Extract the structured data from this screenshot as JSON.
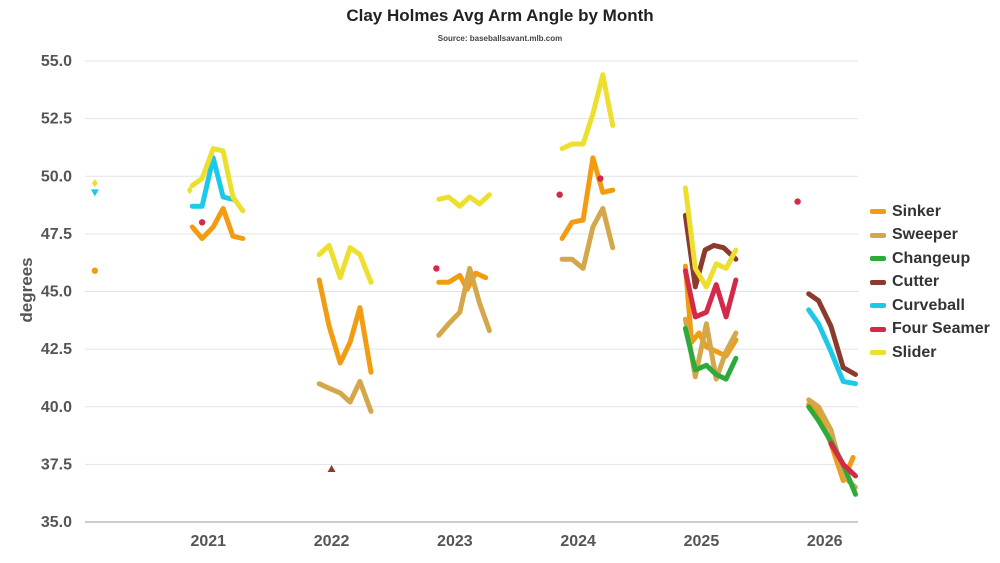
{
  "chart_data": {
    "type": "line",
    "title": "Clay Holmes Avg Arm Angle by Month",
    "subtitle": "Source: baseballsavant.mlb.com",
    "xlabel": "",
    "ylabel": "degrees",
    "xlim": [
      2020.0,
      2026.27
    ],
    "ylim": [
      35.0,
      55.0
    ],
    "x_ticks": [
      2021,
      2022,
      2023,
      2024,
      2025,
      2026
    ],
    "y_ticks": [
      "35.0",
      "37.5",
      "40.0",
      "42.5",
      "45.0",
      "47.5",
      "50.0",
      "52.5",
      "55.0"
    ],
    "grid": "horizontal",
    "legend_position": "right",
    "series": [
      {
        "name": "Sinker",
        "color": "#f39c12",
        "points": [
          [
            2020.87,
            47.8
          ],
          [
            2020.95,
            47.3
          ],
          [
            2021.04,
            47.8
          ],
          [
            2021.12,
            48.6
          ],
          [
            2021.2,
            47.4
          ],
          [
            2021.28,
            47.3
          ]
        ],
        "points2": [
          [
            2021.9,
            45.5
          ],
          [
            2021.98,
            43.5
          ],
          [
            2022.07,
            41.9
          ],
          [
            2022.15,
            42.8
          ],
          [
            2022.23,
            44.3
          ],
          [
            2022.32,
            41.5
          ]
        ],
        "points3": [
          [
            2022.87,
            45.4
          ],
          [
            2022.95,
            45.4
          ],
          [
            2023.04,
            45.7
          ],
          [
            2023.1,
            45.1
          ],
          [
            2023.17,
            45.8
          ],
          [
            2023.25,
            45.6
          ]
        ],
        "points4": [
          [
            2023.87,
            47.3
          ],
          [
            2023.95,
            48.0
          ],
          [
            2024.04,
            48.1
          ],
          [
            2024.12,
            50.8
          ],
          [
            2024.2,
            49.3
          ],
          [
            2024.28,
            49.4
          ]
        ],
        "points5": [
          [
            2024.87,
            46.1
          ],
          [
            2024.92,
            42.8
          ],
          [
            2024.98,
            43.2
          ],
          [
            2025.04,
            42.6
          ],
          [
            2025.12,
            42.4
          ],
          [
            2025.2,
            42.2
          ],
          [
            2025.28,
            42.9
          ]
        ],
        "points6": [
          [
            2025.87,
            40.1
          ],
          [
            2025.95,
            39.7
          ],
          [
            2026.05,
            38.4
          ],
          [
            2026.15,
            36.8
          ],
          [
            2026.23,
            37.8
          ]
        ]
      },
      {
        "name": "Sweeper",
        "color": "#d4a84a",
        "points": [
          [
            2021.9,
            41.0
          ],
          [
            2021.98,
            40.8
          ],
          [
            2022.07,
            40.6
          ],
          [
            2022.15,
            40.2
          ],
          [
            2022.23,
            41.1
          ],
          [
            2022.32,
            39.8
          ]
        ],
        "points2": [
          [
            2022.87,
            43.1
          ],
          [
            2022.95,
            43.6
          ],
          [
            2023.04,
            44.1
          ],
          [
            2023.12,
            46.0
          ],
          [
            2023.2,
            44.5
          ],
          [
            2023.28,
            43.3
          ]
        ],
        "points3": [
          [
            2023.87,
            46.4
          ],
          [
            2023.95,
            46.4
          ],
          [
            2024.04,
            46.0
          ],
          [
            2024.12,
            47.8
          ],
          [
            2024.2,
            48.6
          ],
          [
            2024.28,
            46.9
          ]
        ],
        "points4": [
          [
            2024.87,
            43.8
          ],
          [
            2024.95,
            41.3
          ],
          [
            2025.04,
            43.6
          ],
          [
            2025.12,
            41.2
          ],
          [
            2025.2,
            42.4
          ],
          [
            2025.28,
            43.2
          ]
        ],
        "points5": [
          [
            2025.87,
            40.3
          ],
          [
            2025.95,
            40.0
          ],
          [
            2026.05,
            39.0
          ],
          [
            2026.15,
            37.0
          ],
          [
            2026.25,
            36.5
          ]
        ]
      },
      {
        "name": "Changeup",
        "color": "#2eaa3c",
        "points": [
          [
            2024.87,
            43.4
          ],
          [
            2024.95,
            41.6
          ],
          [
            2025.04,
            41.8
          ],
          [
            2025.12,
            41.4
          ],
          [
            2025.2,
            41.2
          ],
          [
            2025.28,
            42.1
          ]
        ],
        "points2": [
          [
            2025.87,
            40.0
          ],
          [
            2025.95,
            39.4
          ],
          [
            2026.05,
            38.5
          ],
          [
            2026.15,
            37.5
          ],
          [
            2026.25,
            36.2
          ]
        ]
      },
      {
        "name": "Cutter",
        "color": "#8b3a2e",
        "points": [
          [
            2024.87,
            48.3
          ],
          [
            2024.95,
            45.2
          ],
          [
            2025.03,
            46.8
          ],
          [
            2025.1,
            47.0
          ],
          [
            2025.18,
            46.9
          ],
          [
            2025.28,
            46.4
          ]
        ],
        "points2": [
          [
            2025.87,
            44.9
          ],
          [
            2025.95,
            44.6
          ],
          [
            2026.05,
            43.5
          ],
          [
            2026.15,
            41.7
          ],
          [
            2026.25,
            41.4
          ]
        ]
      },
      {
        "name": "Curveball",
        "color": "#1cc9e8",
        "points": [
          [
            2020.87,
            48.7
          ],
          [
            2020.95,
            48.7
          ],
          [
            2021.04,
            50.8
          ],
          [
            2021.12,
            49.1
          ],
          [
            2021.2,
            49.0
          ]
        ],
        "points2": [
          [
            2025.87,
            44.2
          ],
          [
            2025.95,
            43.6
          ],
          [
            2026.05,
            42.4
          ],
          [
            2026.15,
            41.1
          ],
          [
            2026.25,
            41.0
          ]
        ]
      },
      {
        "name": "Four Seamer",
        "color": "#d42a4a",
        "points": [
          [
            2024.87,
            45.9
          ],
          [
            2024.95,
            43.9
          ],
          [
            2025.04,
            44.1
          ],
          [
            2025.12,
            45.3
          ],
          [
            2025.2,
            43.9
          ],
          [
            2025.28,
            45.5
          ]
        ],
        "points2": [
          [
            2026.05,
            38.4
          ],
          [
            2026.15,
            37.5
          ],
          [
            2026.25,
            37.0
          ]
        ]
      },
      {
        "name": "Slider",
        "color": "#ecdf2e",
        "points": [
          [
            2020.87,
            49.6
          ],
          [
            2020.95,
            49.9
          ],
          [
            2021.04,
            51.2
          ],
          [
            2021.12,
            51.1
          ],
          [
            2021.2,
            49.1
          ],
          [
            2021.28,
            48.5
          ]
        ],
        "points2": [
          [
            2021.9,
            46.6
          ],
          [
            2021.98,
            47.0
          ],
          [
            2022.07,
            45.6
          ],
          [
            2022.15,
            46.9
          ],
          [
            2022.23,
            46.6
          ],
          [
            2022.32,
            45.4
          ]
        ],
        "points3": [
          [
            2022.87,
            49.0
          ],
          [
            2022.95,
            49.1
          ],
          [
            2023.04,
            48.7
          ],
          [
            2023.12,
            49.1
          ],
          [
            2023.2,
            48.8
          ],
          [
            2023.28,
            49.2
          ]
        ],
        "points4": [
          [
            2023.87,
            51.2
          ],
          [
            2023.95,
            51.4
          ],
          [
            2024.04,
            51.4
          ],
          [
            2024.12,
            52.7
          ],
          [
            2024.2,
            54.4
          ],
          [
            2024.28,
            52.2
          ]
        ],
        "points5": [
          [
            2024.87,
            49.5
          ],
          [
            2024.95,
            46.0
          ],
          [
            2025.04,
            45.2
          ],
          [
            2025.12,
            46.2
          ],
          [
            2025.2,
            46.0
          ],
          [
            2025.28,
            46.8
          ]
        ]
      }
    ],
    "markers": [
      {
        "series": "Sinker",
        "shape": "circle",
        "x": 2020.08,
        "y": 45.9
      },
      {
        "series": "Curveball",
        "shape": "triangle-down",
        "x": 2020.08,
        "y": 49.3
      },
      {
        "series": "Slider",
        "shape": "diamond",
        "x": 2020.08,
        "y": 49.7
      },
      {
        "series": "Four Seamer",
        "shape": "circle",
        "x": 2020.95,
        "y": 48.0
      },
      {
        "series": "Slider",
        "shape": "diamond",
        "x": 2020.85,
        "y": 49.4
      },
      {
        "series": "Cutter",
        "shape": "triangle",
        "x": 2022.0,
        "y": 37.3
      },
      {
        "series": "Four Seamer",
        "shape": "circle",
        "x": 2022.85,
        "y": 46.0
      },
      {
        "series": "Four Seamer",
        "shape": "circle",
        "x": 2023.85,
        "y": 49.2
      },
      {
        "series": "Four Seamer",
        "shape": "circle",
        "x": 2024.18,
        "y": 49.9
      },
      {
        "series": "Four Seamer",
        "shape": "circle",
        "x": 2025.78,
        "y": 48.9
      }
    ]
  }
}
